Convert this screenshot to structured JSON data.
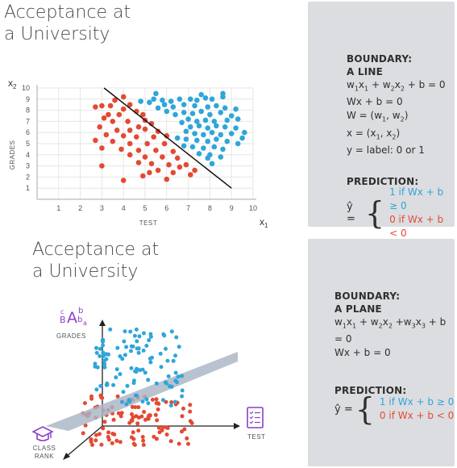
{
  "top": {
    "title_line1": "Acceptance at",
    "title_line2": "a University",
    "panel": {
      "boundary_header": "BOUNDARY:",
      "boundary_type": "A LINE",
      "eq1_text": "w1x1 + w2x2 + b = 0",
      "eq2_text": "Wx + b = 0",
      "eq3_text": "W = (w1, w2)",
      "eq4_text": "x = (x1, x2)",
      "eq5_text": "y = label: 0 or 1",
      "prediction_header": "PREDICTION:",
      "yhat": "ŷ =",
      "case1": "1 if Wx + b ≥ 0",
      "case2": "0 if Wx + b < 0"
    }
  },
  "bottom": {
    "title_line1": "Acceptance at",
    "title_line2": "a University",
    "panel": {
      "boundary_header": "BOUNDARY:",
      "boundary_type": "A PLANE",
      "eq1_text": "w1x1 + w2x2 +w3x3 + b = 0",
      "eq2_text": "Wx + b = 0",
      "prediction_header": "PREDICTION:",
      "yhat": "ŷ =",
      "case1": "1 if Wx + b ≥ 0",
      "case2": "0 if Wx + b < 0"
    },
    "labels": {
      "grades": "GRADES",
      "class_rank": "CLASS RANK",
      "test": "TEST"
    },
    "icon_letters": {
      "b1": "b",
      "c": "c",
      "B": "B",
      "A": "A",
      "b2": "b",
      "a": "a"
    }
  },
  "colors": {
    "accepted": "#2fa6d8",
    "rejected": "#e34a33",
    "panel": "#dcdde0",
    "icon": "#8a3fc8"
  },
  "chart_data": {
    "type": "scatter",
    "title": "",
    "xlabel": "TEST",
    "ylabel": "GRADES",
    "x_axis_name": "x1",
    "y_axis_name": "x2",
    "xlim": [
      0,
      10
    ],
    "ylim": [
      0,
      10
    ],
    "xticks": [
      1,
      2,
      3,
      4,
      5,
      6,
      7,
      8,
      9,
      10
    ],
    "yticks": [
      1,
      2,
      3,
      4,
      5,
      6,
      7,
      8,
      9,
      10
    ],
    "grid": true,
    "boundary_line": {
      "x": [
        3.1,
        9.0
      ],
      "y": [
        10.0,
        1.0
      ]
    },
    "series": [
      {
        "color": "#2fa6d8",
        "points": [
          [
            5.5,
            9.5
          ],
          [
            4.8,
            8.8
          ],
          [
            5.2,
            8.7
          ],
          [
            5.4,
            9.0
          ],
          [
            5.8,
            8.9
          ],
          [
            6.2,
            8.8
          ],
          [
            6.6,
            9.0
          ],
          [
            7.1,
            9.0
          ],
          [
            7.4,
            8.9
          ],
          [
            7.8,
            9.1
          ],
          [
            8.1,
            9.0
          ],
          [
            8.6,
            9.2
          ],
          [
            7.6,
            9.4
          ],
          [
            8.6,
            9.5
          ],
          [
            5.9,
            8.5
          ],
          [
            6.3,
            8.3
          ],
          [
            6.8,
            8.5
          ],
          [
            7.3,
            8.4
          ],
          [
            7.9,
            8.3
          ],
          [
            8.3,
            8.4
          ],
          [
            8.7,
            8.2
          ],
          [
            9.2,
            8.1
          ],
          [
            5.6,
            8.2
          ],
          [
            6.0,
            7.9
          ],
          [
            6.4,
            7.6
          ],
          [
            6.8,
            7.8
          ],
          [
            7.2,
            7.7
          ],
          [
            7.6,
            7.9
          ],
          [
            8.0,
            7.6
          ],
          [
            8.5,
            7.8
          ],
          [
            9.0,
            7.5
          ],
          [
            9.3,
            7.2
          ],
          [
            7.0,
            7.2
          ],
          [
            7.4,
            7.0
          ],
          [
            7.8,
            7.1
          ],
          [
            8.2,
            7.0
          ],
          [
            8.8,
            7.1
          ],
          [
            6.7,
            6.9
          ],
          [
            7.1,
            6.5
          ],
          [
            7.5,
            6.6
          ],
          [
            7.9,
            6.4
          ],
          [
            8.3,
            6.6
          ],
          [
            8.7,
            6.5
          ],
          [
            9.2,
            6.4
          ],
          [
            9.6,
            6.0
          ],
          [
            6.9,
            6.1
          ],
          [
            7.3,
            5.9
          ],
          [
            7.7,
            5.8
          ],
          [
            8.1,
            6.0
          ],
          [
            8.5,
            5.8
          ],
          [
            9.0,
            5.9
          ],
          [
            9.5,
            5.5
          ],
          [
            6.5,
            5.5
          ],
          [
            6.9,
            5.4
          ],
          [
            7.4,
            5.3
          ],
          [
            7.9,
            5.2
          ],
          [
            8.3,
            5.4
          ],
          [
            8.8,
            5.2
          ],
          [
            9.3,
            5.0
          ],
          [
            6.8,
            4.8
          ],
          [
            7.2,
            4.7
          ],
          [
            7.7,
            4.6
          ],
          [
            8.2,
            4.7
          ],
          [
            8.6,
            4.5
          ],
          [
            7.5,
            4.1
          ],
          [
            8.0,
            4.0
          ],
          [
            8.5,
            3.8
          ],
          [
            8.1,
            3.2
          ],
          [
            7.9,
            3.7
          ]
        ]
      },
      {
        "color": "#e34a33",
        "points": [
          [
            4.0,
            9.2
          ],
          [
            3.6,
            8.9
          ],
          [
            3.4,
            8.4
          ],
          [
            2.7,
            8.3
          ],
          [
            3.0,
            8.4
          ],
          [
            4.3,
            8.5
          ],
          [
            4.0,
            8.1
          ],
          [
            4.6,
            7.9
          ],
          [
            3.3,
            7.6
          ],
          [
            3.8,
            7.6
          ],
          [
            4.9,
            7.6
          ],
          [
            3.1,
            7.3
          ],
          [
            3.5,
            7.0
          ],
          [
            4.2,
            7.0
          ],
          [
            5.0,
            7.1
          ],
          [
            5.3,
            6.8
          ],
          [
            2.9,
            6.5
          ],
          [
            4.7,
            6.5
          ],
          [
            3.7,
            6.2
          ],
          [
            4.3,
            6.2
          ],
          [
            5.0,
            6.3
          ],
          [
            5.6,
            6.1
          ],
          [
            3.2,
            5.8
          ],
          [
            4.0,
            5.7
          ],
          [
            4.6,
            5.6
          ],
          [
            5.4,
            5.6
          ],
          [
            6.0,
            5.7
          ],
          [
            2.7,
            5.3
          ],
          [
            3.5,
            5.2
          ],
          [
            4.3,
            5.0
          ],
          [
            5.1,
            5.0
          ],
          [
            5.9,
            5.0
          ],
          [
            3.0,
            4.6
          ],
          [
            3.9,
            4.5
          ],
          [
            4.7,
            4.4
          ],
          [
            5.5,
            4.4
          ],
          [
            6.3,
            4.3
          ],
          [
            4.3,
            4.0
          ],
          [
            5.0,
            3.8
          ],
          [
            5.8,
            3.8
          ],
          [
            6.5,
            3.7
          ],
          [
            4.7,
            3.3
          ],
          [
            5.3,
            3.2
          ],
          [
            6.1,
            3.1
          ],
          [
            6.9,
            3.1
          ],
          [
            5.6,
            2.6
          ],
          [
            6.3,
            2.4
          ],
          [
            7.1,
            2.2
          ],
          [
            6.6,
            2.9
          ],
          [
            7.3,
            2.6
          ],
          [
            4.9,
            2.1
          ],
          [
            4.0,
            1.7
          ],
          [
            6.0,
            1.8
          ],
          [
            3.0,
            3.0
          ],
          [
            5.2,
            2.4
          ]
        ]
      }
    ]
  }
}
